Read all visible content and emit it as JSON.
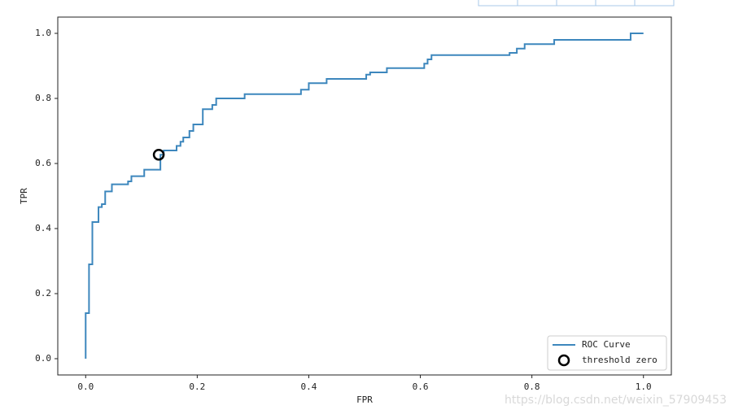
{
  "chart_data": {
    "type": "line",
    "xlabel": "FPR",
    "ylabel": "TPR",
    "xlim": [
      -0.05,
      1.05
    ],
    "ylim": [
      -0.05,
      1.05
    ],
    "xticks": [
      {
        "value": 0,
        "label": "0.0"
      },
      {
        "value": 0.2,
        "label": "0.2"
      },
      {
        "value": 0.4,
        "label": "0.4"
      },
      {
        "value": 0.6,
        "label": "0.6"
      },
      {
        "value": 0.8,
        "label": "0.8"
      },
      {
        "value": 1,
        "label": "1.0"
      }
    ],
    "yticks": [
      {
        "value": 0,
        "label": "0.0"
      },
      {
        "value": 0.2,
        "label": "0.2"
      },
      {
        "value": 0.4,
        "label": "0.4"
      },
      {
        "value": 0.6,
        "label": "0.6"
      },
      {
        "value": 0.8,
        "label": "0.8"
      },
      {
        "value": 1,
        "label": "1.0"
      }
    ],
    "legend": "lower right",
    "series": [
      {
        "name": "ROC Curve",
        "color": "#3d87bd",
        "type": "line",
        "x": [
          0,
          0,
          0.006,
          0.006,
          0.012,
          0.012,
          0.023,
          0.023,
          0.029,
          0.029,
          0.035,
          0.035,
          0.047,
          0.047,
          0.076,
          0.076,
          0.082,
          0.082,
          0.105,
          0.105,
          0.134,
          0.134,
          0.14,
          0.14,
          0.163,
          0.163,
          0.17,
          0.17,
          0.175,
          0.175,
          0.186,
          0.186,
          0.193,
          0.193,
          0.21,
          0.21,
          0.227,
          0.227,
          0.234,
          0.234,
          0.285,
          0.285,
          0.386,
          0.386,
          0.4,
          0.4,
          0.432,
          0.432,
          0.503,
          0.503,
          0.51,
          0.51,
          0.54,
          0.54,
          0.607,
          0.607,
          0.613,
          0.613,
          0.62,
          0.62,
          0.76,
          0.76,
          0.773,
          0.773,
          0.787,
          0.787,
          0.84,
          0.84,
          0.977,
          0.977,
          1
        ],
        "values": [
          0,
          0.14,
          0.14,
          0.29,
          0.29,
          0.42,
          0.42,
          0.466,
          0.466,
          0.475,
          0.475,
          0.514,
          0.514,
          0.536,
          0.536,
          0.545,
          0.545,
          0.561,
          0.561,
          0.581,
          0.581,
          0.627,
          0.627,
          0.64,
          0.64,
          0.654,
          0.654,
          0.667,
          0.667,
          0.68,
          0.68,
          0.7,
          0.7,
          0.72,
          0.72,
          0.767,
          0.767,
          0.78,
          0.78,
          0.8,
          0.8,
          0.813,
          0.813,
          0.827,
          0.827,
          0.847,
          0.847,
          0.86,
          0.86,
          0.873,
          0.873,
          0.88,
          0.88,
          0.893,
          0.893,
          0.907,
          0.907,
          0.92,
          0.92,
          0.933,
          0.933,
          0.94,
          0.94,
          0.953,
          0.953,
          0.967,
          0.967,
          0.98,
          0.98,
          1,
          1
        ]
      },
      {
        "name": "threshold zero",
        "color": "#000000",
        "type": "scatter",
        "x": [
          0.131
        ],
        "values": [
          0.627
        ]
      }
    ],
    "watermark": "https://blog.csdn.net/weixin_57909453"
  }
}
